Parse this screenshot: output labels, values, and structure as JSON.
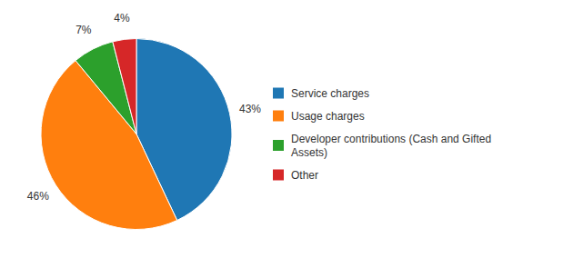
{
  "chart_data": {
    "type": "pie",
    "categories": [
      "Service charges",
      "Usage charges",
      "Developer contributions (Cash and Gifted\nAssets)",
      "Other"
    ],
    "values": [
      43,
      46,
      7,
      4
    ],
    "value_labels": [
      "43%",
      "46%",
      "7%",
      "4%"
    ],
    "data_labels": true,
    "legend": "right"
  }
}
